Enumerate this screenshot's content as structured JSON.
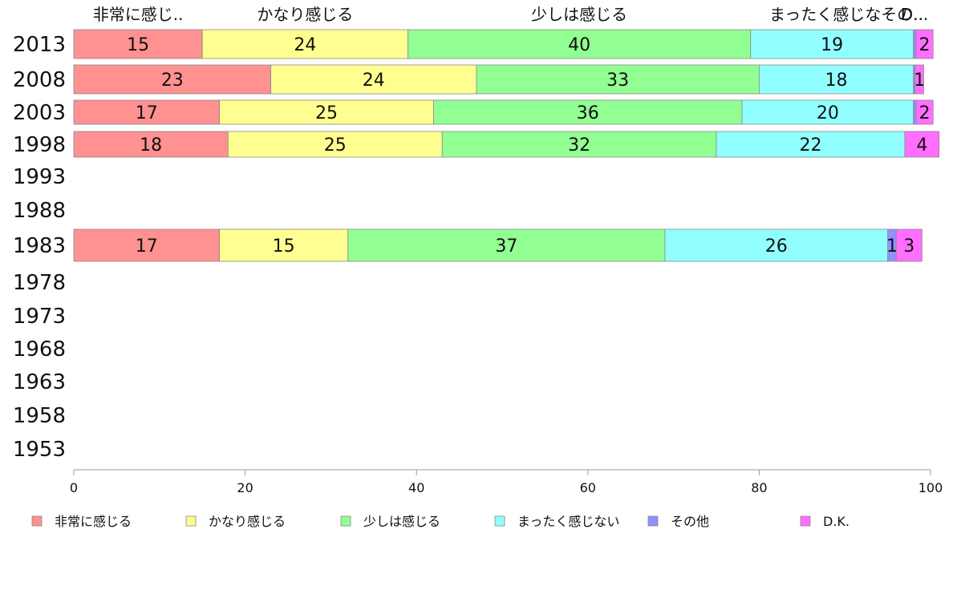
{
  "chart_data": {
    "type": "bar",
    "orientation": "horizontal",
    "stacked": true,
    "categories": [
      "2013",
      "2008",
      "2003",
      "1998",
      "1993",
      "1988",
      "1983",
      "1978",
      "1973",
      "1968",
      "1963",
      "1958",
      "1953"
    ],
    "top_labels": [
      "非常に感じ..",
      "かなり感じる",
      "少しは感じる",
      "まったく感じなその..",
      "D..."
    ],
    "series": [
      {
        "name": "非常に感じる",
        "color": "#ff9191",
        "values": [
          15,
          23,
          17,
          18,
          null,
          null,
          17,
          null,
          null,
          null,
          null,
          null,
          null
        ]
      },
      {
        "name": "かなり感じる",
        "color": "#ffff91",
        "values": [
          24,
          24,
          25,
          25,
          null,
          null,
          15,
          null,
          null,
          null,
          null,
          null,
          null
        ]
      },
      {
        "name": "少しは感じる",
        "color": "#91ff91",
        "values": [
          40,
          33,
          36,
          32,
          null,
          null,
          37,
          null,
          null,
          null,
          null,
          null,
          null
        ]
      },
      {
        "name": "まったく感じない",
        "color": "#91ffff",
        "values": [
          19,
          18,
          20,
          22,
          null,
          null,
          26,
          null,
          null,
          null,
          null,
          null,
          null
        ]
      },
      {
        "name": "その他",
        "color": "#9191ff",
        "values": [
          0.3,
          0.2,
          0.3,
          0,
          null,
          null,
          1,
          null,
          null,
          null,
          null,
          null,
          null
        ]
      },
      {
        "name": "D.K.",
        "color": "#ff6eff",
        "values": [
          2,
          1,
          2,
          4,
          null,
          null,
          3,
          null,
          null,
          null,
          null,
          null,
          null
        ]
      }
    ],
    "data_labels": [
      [
        "15",
        "24",
        "40",
        "19",
        "",
        "2"
      ],
      [
        "23",
        "24",
        "33",
        "18",
        "",
        "1"
      ],
      [
        "17",
        "25",
        "36",
        "20",
        "",
        "2"
      ],
      [
        "18",
        "25",
        "32",
        "22",
        "",
        "4"
      ],
      [
        "",
        "",
        "",
        "",
        "",
        ""
      ],
      [
        "",
        "",
        "",
        "",
        "",
        ""
      ],
      [
        "17",
        "15",
        "37",
        "26",
        "1",
        "3"
      ],
      [
        "",
        "",
        "",
        "",
        "",
        ""
      ],
      [
        "",
        "",
        "",
        "",
        "",
        ""
      ],
      [
        "",
        "",
        "",
        "",
        "",
        ""
      ],
      [
        "",
        "",
        "",
        "",
        "",
        ""
      ],
      [
        "",
        "",
        "",
        "",
        "",
        ""
      ],
      [
        "",
        "",
        "",
        "",
        "",
        ""
      ]
    ],
    "xticks": [
      0,
      20,
      40,
      60,
      80,
      100
    ],
    "xlim": [
      0,
      100
    ],
    "legend_position": "bottom"
  }
}
